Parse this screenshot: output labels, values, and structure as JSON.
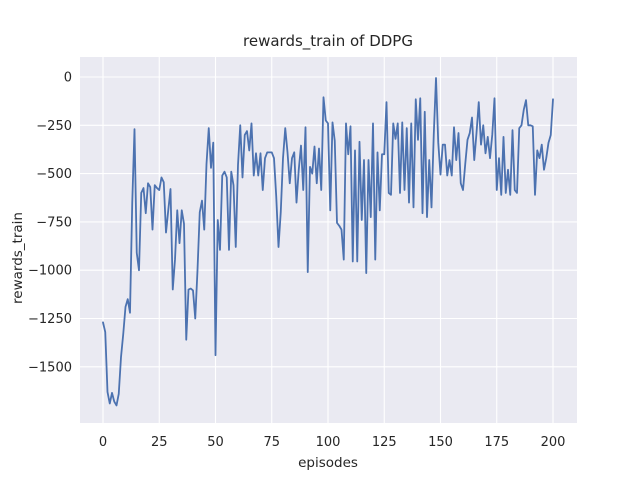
{
  "figure": {
    "background": "#ffffff"
  },
  "chart_data": {
    "type": "line",
    "title": "rewards_train of DDPG",
    "xlabel": "episodes",
    "ylabel": "rewards_train",
    "legend": false,
    "grid": true,
    "plot_background": "#eaeaf2",
    "grid_color": "#ffffff",
    "series_color": "#4c72b0",
    "text_color": "#262626",
    "x_ticks": [
      0,
      25,
      50,
      75,
      100,
      125,
      150,
      175,
      200
    ],
    "x_tick_labels": [
      "0",
      "25",
      "50",
      "75",
      "100",
      "125",
      "150",
      "175",
      "200"
    ],
    "y_ticks": [
      0,
      -250,
      -500,
      -750,
      -1000,
      -1250,
      -1500
    ],
    "y_tick_labels": [
      "0",
      "−250",
      "−500",
      "−750",
      "−1000",
      "−1250",
      "−1500"
    ],
    "x_start": 0,
    "x_step": 1,
    "n_points": 201,
    "x_range_shown": [
      0,
      200
    ],
    "y_range_approx": [
      -1750,
      80
    ],
    "values": [
      -1270,
      -1320,
      -1630,
      -1690,
      -1635,
      -1680,
      -1700,
      -1640,
      -1450,
      -1330,
      -1190,
      -1150,
      -1220,
      -650,
      -270,
      -910,
      -1000,
      -600,
      -575,
      -705,
      -550,
      -570,
      -790,
      -560,
      -575,
      -585,
      -520,
      -545,
      -805,
      -690,
      -580,
      -1100,
      -945,
      -690,
      -860,
      -690,
      -760,
      -1360,
      -1100,
      -1095,
      -1105,
      -1250,
      -1000,
      -700,
      -640,
      -790,
      -450,
      -265,
      -470,
      -340,
      -1440,
      -740,
      -895,
      -510,
      -490,
      -520,
      -895,
      -490,
      -560,
      -880,
      -455,
      -250,
      -520,
      -300,
      -280,
      -380,
      -240,
      -510,
      -395,
      -510,
      -395,
      -585,
      -420,
      -390,
      -390,
      -390,
      -420,
      -620,
      -880,
      -700,
      -420,
      -265,
      -390,
      -550,
      -420,
      -390,
      -650,
      -480,
      -355,
      -585,
      -260,
      -1010,
      -465,
      -500,
      -360,
      -550,
      -370,
      -585,
      -105,
      -225,
      -240,
      -690,
      -235,
      -330,
      -755,
      -770,
      -790,
      -945,
      -240,
      -400,
      -255,
      -955,
      -380,
      -955,
      -335,
      -740,
      -430,
      -1015,
      -430,
      -725,
      -240,
      -945,
      -390,
      -690,
      -400,
      -400,
      -130,
      -600,
      -610,
      -240,
      -320,
      -240,
      -600,
      -235,
      -585,
      -265,
      -650,
      -240,
      -675,
      -115,
      -325,
      -110,
      -705,
      -180,
      -725,
      -430,
      -675,
      -300,
      -5,
      -340,
      -505,
      -350,
      -350,
      -510,
      -430,
      -510,
      -260,
      -430,
      -290,
      -550,
      -585,
      -450,
      -325,
      -290,
      -210,
      -430,
      -290,
      -130,
      -350,
      -250,
      -395,
      -310,
      -420,
      -300,
      -110,
      -585,
      -420,
      -610,
      -310,
      -600,
      -480,
      -610,
      -275,
      -585,
      -600,
      -265,
      -250,
      -170,
      -120,
      -250,
      -250,
      -255,
      -610,
      -380,
      -420,
      -350,
      -480,
      -420,
      -340,
      -300,
      -115
    ]
  }
}
